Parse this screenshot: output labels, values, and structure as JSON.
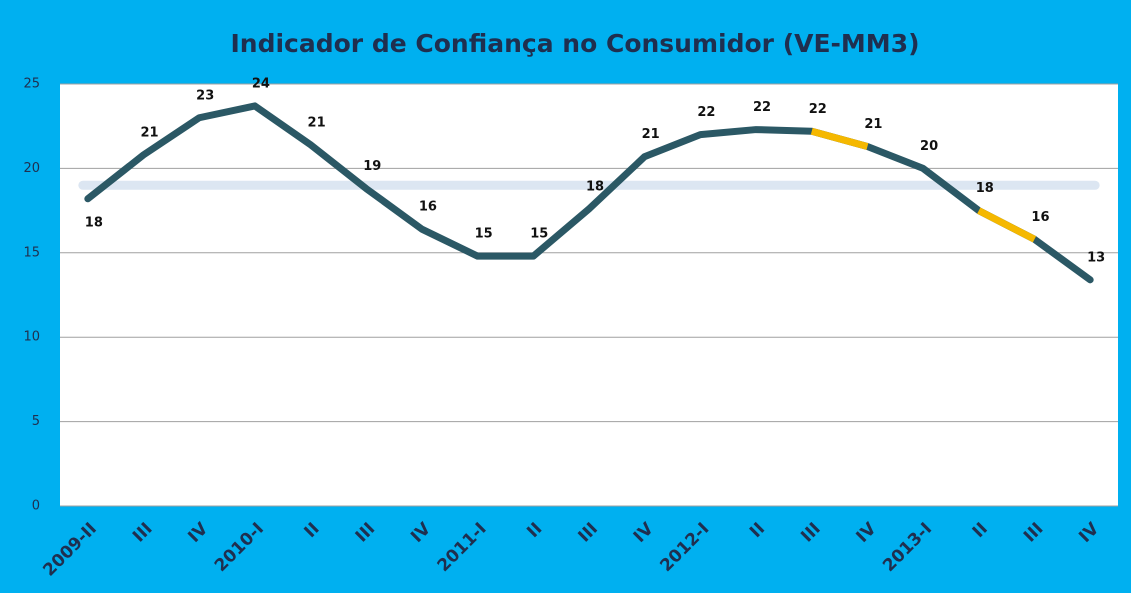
{
  "chart_data": {
    "type": "line",
    "title": "Indicador de Confiança no Consumidor (VE-MM3)",
    "categories": [
      "2009-II",
      "III",
      "IV",
      "2010-I",
      "II",
      "III",
      "IV",
      "2011-I",
      "II",
      "III",
      "IV",
      "2012-I",
      "II",
      "III",
      "IV",
      "2013-I",
      "II",
      "III",
      "IV"
    ],
    "series": [
      {
        "color": "#2b5865",
        "values": [
          18.2,
          20.8,
          23.0,
          23.7,
          21.4,
          18.8,
          16.4,
          14.8,
          14.8,
          17.6,
          20.7,
          22.0,
          22.3,
          22.2,
          21.3,
          20.0,
          17.5,
          15.8,
          13.4
        ],
        "value_labels": [
          "18",
          "21",
          "23",
          "24",
          "21",
          "19",
          "16",
          "15",
          "15",
          "18",
          "21",
          "22",
          "22",
          "22",
          "21",
          "20",
          "18",
          "16",
          "13"
        ],
        "segment_colors": [
          "#2b5865",
          "#2b5865",
          "#2b5865",
          "#2b5865",
          "#2b5865",
          "#2b5865",
          "#2b5865",
          "#2b5865",
          "#2b5865",
          "#2b5865",
          "#2b5865",
          "#2b5865",
          "#2b5865",
          "#f5b800",
          "#2b5865",
          "#2b5865",
          "#f5b800",
          "#2b5865"
        ]
      }
    ],
    "reference_line": {
      "value": 19,
      "color": "#dce6f2"
    },
    "ylim": [
      0,
      25
    ],
    "yticks": [
      0,
      5,
      10,
      15,
      20,
      25
    ],
    "grid": true
  }
}
